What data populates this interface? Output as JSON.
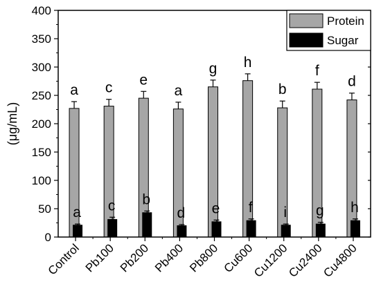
{
  "chart_data": {
    "type": "bar",
    "title": "",
    "xlabel": "",
    "ylabel": "(μg/mL)",
    "ylim": [
      0,
      400
    ],
    "yticks": [
      0,
      50,
      100,
      150,
      200,
      250,
      300,
      350,
      400
    ],
    "grid": false,
    "legend_position": "top-right",
    "categories": [
      "Control",
      "Pb100",
      "Pb200",
      "Pb400",
      "Pb800",
      "Cu600",
      "Cu1200",
      "Cu2400",
      "Cu4800"
    ],
    "series": [
      {
        "name": "Protein",
        "color": "#a6a6a6",
        "values": [
          227,
          231,
          245,
          226,
          265,
          276,
          228,
          261,
          242
        ],
        "errors": [
          12,
          12,
          12,
          12,
          12,
          12,
          12,
          12,
          12
        ],
        "labels": [
          "a",
          "c",
          "e",
          "a",
          "g",
          "h",
          "b",
          "f",
          "d"
        ]
      },
      {
        "name": "Sugar",
        "color": "#000000",
        "values": [
          21,
          31,
          43,
          20,
          27,
          29,
          21,
          23,
          29
        ],
        "errors": [
          2,
          4,
          3,
          2,
          3,
          3,
          2,
          3,
          3
        ],
        "labels": [
          "a",
          "c",
          "b",
          "d",
          "e",
          "f",
          "i",
          "g",
          "h"
        ]
      }
    ]
  }
}
